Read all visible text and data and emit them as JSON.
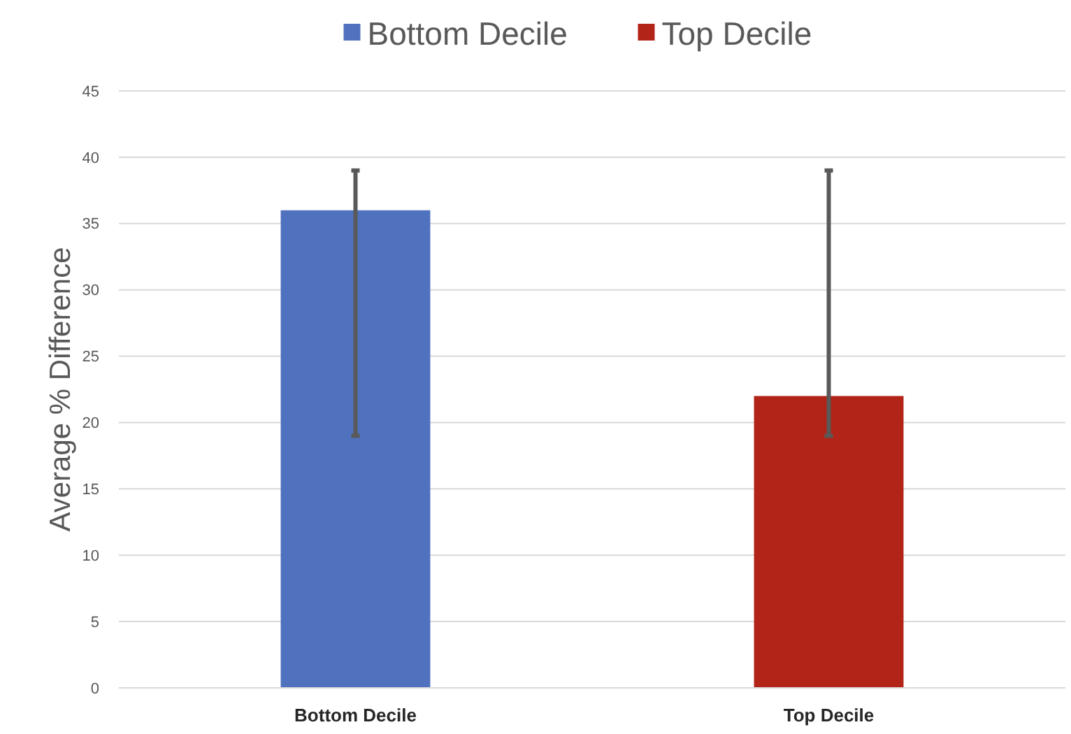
{
  "chart_data": {
    "type": "bar",
    "ylabel": "Average % Difference",
    "categories": [
      "Bottom Decile",
      "Top Decile"
    ],
    "series": [
      {
        "name": "Bottom Decile",
        "color": "#4f71be",
        "values": [
          36,
          null
        ],
        "errors": [
          [
            19,
            39
          ],
          null
        ]
      },
      {
        "name": "Top Decile",
        "color": "#b22418",
        "values": [
          null,
          22
        ],
        "errors": [
          null,
          [
            19,
            39
          ]
        ]
      }
    ],
    "ylim": [
      0,
      45
    ],
    "yticks": [
      0,
      5,
      10,
      15,
      20,
      25,
      30,
      35,
      40,
      45
    ],
    "grid": "y",
    "legend": "top"
  }
}
